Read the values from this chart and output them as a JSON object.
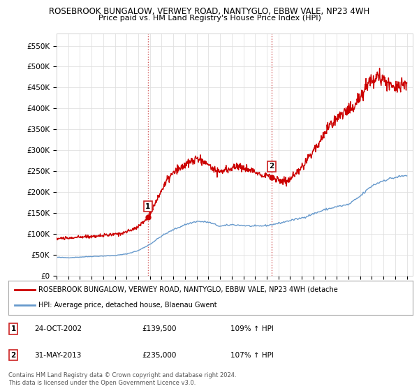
{
  "title1": "ROSEBROOK BUNGALOW, VERWEY ROAD, NANTYGLO, EBBW VALE, NP23 4WH",
  "title2": "Price paid vs. HM Land Registry's House Price Index (HPI)",
  "ylabel_ticks": [
    "£0",
    "£50K",
    "£100K",
    "£150K",
    "£200K",
    "£250K",
    "£300K",
    "£350K",
    "£400K",
    "£450K",
    "£500K",
    "£550K"
  ],
  "ytick_vals": [
    0,
    50000,
    100000,
    150000,
    200000,
    250000,
    300000,
    350000,
    400000,
    450000,
    500000,
    550000
  ],
  "ylim": [
    0,
    580000
  ],
  "xlim_start": 1995.0,
  "xlim_end": 2025.5,
  "red_line_color": "#cc0000",
  "blue_line_color": "#6699cc",
  "marker1_date": 2002.81,
  "marker1_value": 139500,
  "marker1_label": "1",
  "marker2_date": 2013.41,
  "marker2_value": 235000,
  "marker2_label": "2",
  "legend_red": "ROSEBROOK BUNGALOW, VERWEY ROAD, NANTYGLO, EBBW VALE, NP23 4WH (detache",
  "legend_blue": "HPI: Average price, detached house, Blaenau Gwent",
  "table_rows": [
    {
      "num": "1",
      "date": "24-OCT-2002",
      "price": "£139,500",
      "hpi": "109% ↑ HPI"
    },
    {
      "num": "2",
      "date": "31-MAY-2013",
      "price": "£235,000",
      "hpi": "107% ↑ HPI"
    }
  ],
  "footer": "Contains HM Land Registry data © Crown copyright and database right 2024.\nThis data is licensed under the Open Government Licence v3.0.",
  "bg_color": "#ffffff",
  "grid_color": "#e0e0e0"
}
